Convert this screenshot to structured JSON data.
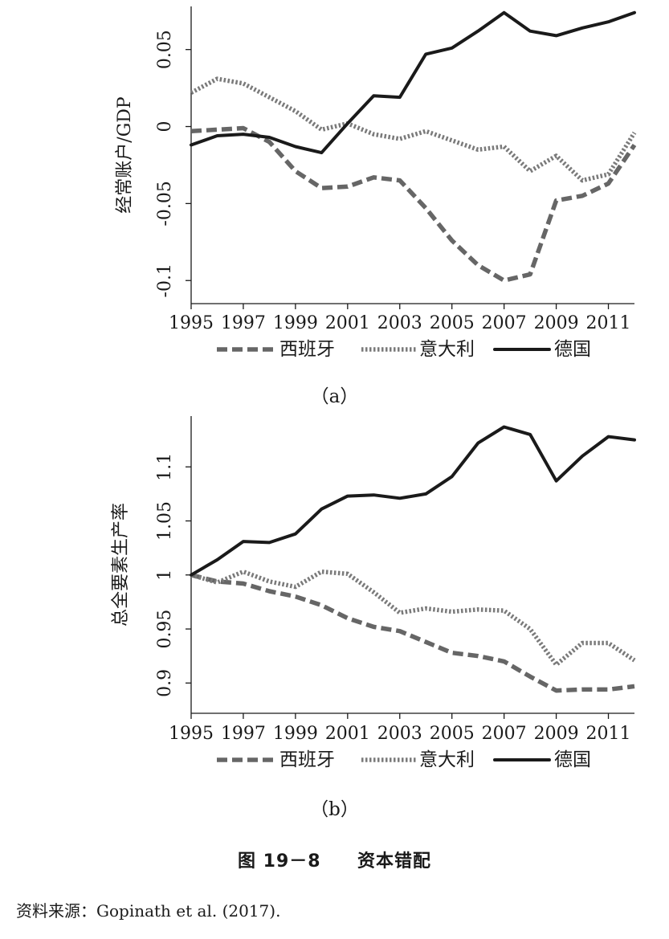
{
  "chart_data": [
    {
      "type": "line",
      "panel_label": "（a）",
      "ylabel": "经常账户/GDP",
      "xlabel": "",
      "x": [
        1995,
        1996,
        1997,
        1998,
        1999,
        2000,
        2001,
        2002,
        2003,
        2004,
        2005,
        2006,
        2007,
        2008,
        2009,
        2010,
        2011,
        2012
      ],
      "xticks": [
        1995,
        1997,
        1999,
        2001,
        2003,
        2005,
        2007,
        2009,
        2011
      ],
      "xtick_labels": [
        "1995",
        "1997",
        "1999",
        "2001",
        "2003",
        "2005",
        "2007",
        "2009",
        "2011"
      ],
      "yticks": [
        -0.1,
        -0.05,
        0,
        0.05
      ],
      "ytick_labels": [
        "-0.1",
        "-0.05",
        "0",
        "0.05"
      ],
      "ylim": [
        -0.115,
        0.078
      ],
      "legend": "bottom",
      "series": [
        {
          "name": "西班牙",
          "style": "dashed",
          "color": "#666666",
          "values": [
            -0.003,
            -0.002,
            -0.001,
            -0.01,
            -0.029,
            -0.04,
            -0.039,
            -0.033,
            -0.035,
            -0.053,
            -0.074,
            -0.09,
            -0.1,
            -0.096,
            -0.048,
            -0.045,
            -0.037,
            -0.012
          ]
        },
        {
          "name": "意大利",
          "style": "dotted",
          "color": "#7a7a7a",
          "values": [
            0.022,
            0.031,
            0.028,
            0.019,
            0.01,
            -0.002,
            0.002,
            -0.005,
            -0.008,
            -0.003,
            -0.009,
            -0.015,
            -0.013,
            -0.029,
            -0.019,
            -0.035,
            -0.031,
            -0.004
          ]
        },
        {
          "name": "德国",
          "style": "solid",
          "color": "#1a1a1a",
          "values": [
            -0.012,
            -0.006,
            -0.005,
            -0.007,
            -0.013,
            -0.017,
            0.002,
            0.02,
            0.019,
            0.047,
            0.051,
            0.062,
            0.074,
            0.062,
            0.059,
            0.064,
            0.068,
            0.074
          ]
        }
      ]
    },
    {
      "type": "line",
      "panel_label": "（b）",
      "ylabel": "总全要素生产率",
      "xlabel": "",
      "x": [
        1995,
        1996,
        1997,
        1998,
        1999,
        2000,
        2001,
        2002,
        2003,
        2004,
        2005,
        2006,
        2007,
        2008,
        2009,
        2010,
        2011,
        2012
      ],
      "xticks": [
        1995,
        1997,
        1999,
        2001,
        2003,
        2005,
        2007,
        2009,
        2011
      ],
      "xtick_labels": [
        "1995",
        "1997",
        "1999",
        "2001",
        "2003",
        "2005",
        "2007",
        "2009",
        "2011"
      ],
      "yticks": [
        0.9,
        0.95,
        1,
        1.05,
        1.1
      ],
      "ytick_labels": [
        "0.9",
        "0.95",
        "1",
        "1.05",
        "1.1"
      ],
      "ylim": [
        0.872,
        1.147
      ],
      "legend": "bottom",
      "series": [
        {
          "name": "西班牙",
          "style": "dashed",
          "color": "#666666",
          "values": [
            1.0,
            0.994,
            0.992,
            0.985,
            0.98,
            0.972,
            0.96,
            0.952,
            0.948,
            0.938,
            0.928,
            0.925,
            0.92,
            0.906,
            0.893,
            0.894,
            0.894,
            0.897
          ]
        },
        {
          "name": "意大利",
          "style": "dotted",
          "color": "#7a7a7a",
          "values": [
            1.0,
            0.993,
            1.003,
            0.994,
            0.989,
            1.003,
            1.001,
            0.984,
            0.965,
            0.969,
            0.966,
            0.968,
            0.967,
            0.95,
            0.917,
            0.937,
            0.937,
            0.921
          ]
        },
        {
          "name": "德国",
          "style": "solid",
          "color": "#1a1a1a",
          "values": [
            1.0,
            1.014,
            1.031,
            1.03,
            1.038,
            1.061,
            1.073,
            1.074,
            1.071,
            1.075,
            1.091,
            1.122,
            1.137,
            1.13,
            1.087,
            1.11,
            1.128,
            1.125
          ]
        }
      ]
    }
  ],
  "figure": {
    "number": "图 19－8",
    "title": "资本错配"
  },
  "source": {
    "label": "资料来源：",
    "citation": "Gopinath et al. (2017)."
  }
}
